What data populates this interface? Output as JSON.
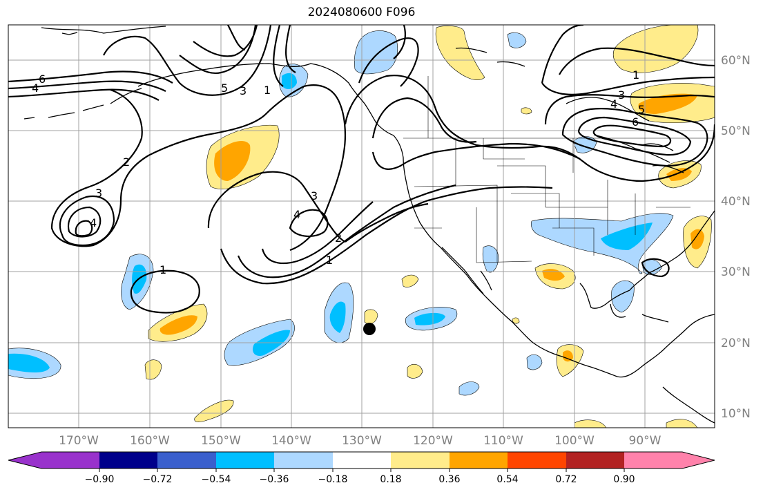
{
  "title": "2024080600 F096",
  "map": {
    "lon_ticks": [
      "170°W",
      "160°W",
      "150°W",
      "140°W",
      "130°W",
      "120°W",
      "110°W",
      "100°W",
      "90°W"
    ],
    "lat_ticks": [
      "60°N",
      "50°N",
      "40°N",
      "30°N",
      "20°N",
      "10°N"
    ],
    "contour_labels": [
      "6",
      "4",
      "5",
      "3",
      "1",
      "2",
      "3",
      "4",
      "4",
      "3",
      "1",
      "2",
      "1",
      "1",
      "3",
      "4",
      "5",
      "6"
    ],
    "marker": "black-dot"
  },
  "colorbar": {
    "colors": [
      "#9932CC",
      "#00008B",
      "#3A5FCD",
      "#00BFFF",
      "#ADD8FF",
      "#FFFFFF",
      "#FFEC8B",
      "#FFA500",
      "#FF4500",
      "#B22222",
      "#FF82AB"
    ],
    "labels": [
      "−0.90",
      "−0.72",
      "−0.54",
      "−0.36",
      "−0.18",
      "0.18",
      "0.36",
      "0.54",
      "0.72",
      "0.90"
    ]
  },
  "colors": {
    "light_blue": "#ADD8FF",
    "blue": "#00BFFF",
    "light_yellow": "#FFEC8B",
    "orange": "#FFA500",
    "grid": "#a0a0a0"
  }
}
